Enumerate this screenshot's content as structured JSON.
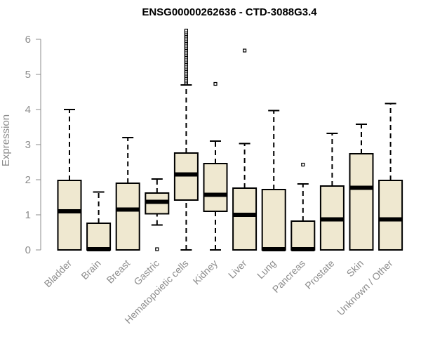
{
  "chart_data": {
    "type": "boxplot",
    "title": "ENSG00000262636 - CTD-3088G3.4",
    "xlabel": "",
    "ylabel": "Expression",
    "ylim": [
      0,
      6.2
    ],
    "yticks": [
      0,
      1,
      2,
      3,
      4,
      5,
      6
    ],
    "box_color": "#efe8d0",
    "categories": [
      "Bladder",
      "Brain",
      "Breast",
      "Gastric",
      "Hematopoietic cells",
      "Kidney",
      "Liver",
      "Lung",
      "Pancreas",
      "Prostate",
      "Skin",
      "Unknown / Other"
    ],
    "boxes": [
      {
        "name": "Bladder",
        "whisker_low": 0.0,
        "q1": 0.0,
        "median": 1.1,
        "q3": 1.98,
        "whisker_high": 4.0,
        "outliers": []
      },
      {
        "name": "Brain",
        "whisker_low": 0.0,
        "q1": 0.0,
        "median": 0.02,
        "q3": 0.76,
        "whisker_high": 1.65,
        "outliers": []
      },
      {
        "name": "Breast",
        "whisker_low": 0.0,
        "q1": 0.0,
        "median": 1.15,
        "q3": 1.9,
        "whisker_high": 3.2,
        "outliers": []
      },
      {
        "name": "Gastric",
        "whisker_low": 0.71,
        "q1": 1.03,
        "median": 1.37,
        "q3": 1.62,
        "whisker_high": 2.02,
        "outliers": [
          0.02
        ]
      },
      {
        "name": "Hematopoietic cells",
        "whisker_low": 0.0,
        "q1": 1.42,
        "median": 2.15,
        "q3": 2.76,
        "whisker_high": 4.7,
        "outliers": [
          4.75,
          4.8,
          4.85,
          4.9,
          4.95,
          5.0,
          5.05,
          5.1,
          5.15,
          5.2,
          5.25,
          5.3,
          5.35,
          5.4,
          5.45,
          5.5,
          5.55,
          5.6,
          5.65,
          5.7,
          5.75,
          5.8,
          5.85,
          5.9,
          5.95,
          6.0,
          6.05,
          6.1,
          6.15,
          6.2,
          6.25
        ]
      },
      {
        "name": "Kidney",
        "whisker_low": 0.0,
        "q1": 1.1,
        "median": 1.57,
        "q3": 2.46,
        "whisker_high": 3.1,
        "outliers": [
          4.73
        ]
      },
      {
        "name": "Liver",
        "whisker_low": 0.0,
        "q1": 0.0,
        "median": 1.0,
        "q3": 1.76,
        "whisker_high": 3.03,
        "outliers": [
          5.68
        ]
      },
      {
        "name": "Lung",
        "whisker_low": 0.0,
        "q1": 0.0,
        "median": 0.02,
        "q3": 1.72,
        "whisker_high": 3.97,
        "outliers": []
      },
      {
        "name": "Pancreas",
        "whisker_low": 0.0,
        "q1": 0.0,
        "median": 0.02,
        "q3": 0.82,
        "whisker_high": 1.88,
        "outliers": [
          2.43
        ]
      },
      {
        "name": "Prostate",
        "whisker_low": 0.0,
        "q1": 0.0,
        "median": 0.87,
        "q3": 1.82,
        "whisker_high": 3.32,
        "outliers": []
      },
      {
        "name": "Skin",
        "whisker_low": 0.0,
        "q1": 0.0,
        "median": 1.77,
        "q3": 2.74,
        "whisker_high": 3.58,
        "outliers": []
      },
      {
        "name": "Unknown / Other",
        "whisker_low": 0.0,
        "q1": 0.0,
        "median": 0.87,
        "q3": 1.98,
        "whisker_high": 4.17,
        "outliers": []
      }
    ]
  }
}
